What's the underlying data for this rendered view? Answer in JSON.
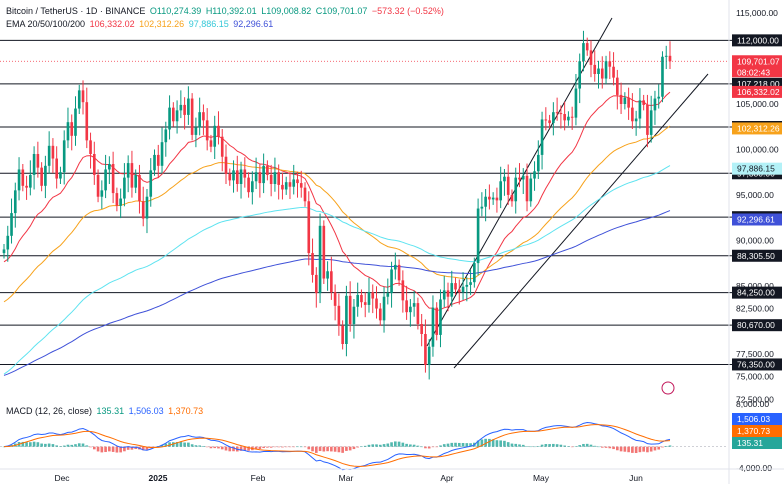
{
  "header": {
    "symbol": "Bitcoin / TetherUS · 1D · BINANCE",
    "open": "O110,274.39",
    "high": "H110,392.01",
    "low": "L109,008.82",
    "close": "C109,701.07",
    "change": "−573.32 (−0.52%)",
    "ema_label": "EMA 20/50/100/200",
    "ema20": "106,332.02",
    "ema50": "102,312.26",
    "ema100": "97,886.15",
    "ema200": "92,296.61",
    "macd_label": "MACD (12, 26, close)",
    "macd_hist": "135.31",
    "macd_line": "1,506.03",
    "macd_signal": "1,370.73"
  },
  "colors": {
    "up": "#089981",
    "down": "#f23645",
    "ema20": "#f23645",
    "ema50": "#f7a21b",
    "ema100": "#5ee3f0",
    "ema200": "#3f51d8",
    "macd_line": "#2962ff",
    "macd_signal": "#ff6d00"
  },
  "price_axis": {
    "ticks": [
      "115,000.00",
      "110,000.00",
      "105,000.00",
      "100,000.00",
      "95,000.00",
      "90,000.00",
      "85,000.00",
      "82,500.00",
      "77,500.00",
      "75,000.00",
      "72,500.00"
    ],
    "tick_values": [
      115000,
      110000,
      105000,
      100000,
      95000,
      90000,
      85000,
      82500,
      77500,
      75000,
      72500
    ]
  },
  "macd_axis": {
    "ticks": [
      "8,000.00",
      "-4,000.00"
    ],
    "tick_values": [
      8000,
      -4000
    ]
  },
  "time_axis": {
    "labels": [
      "Dec",
      "2025",
      "Feb",
      "Mar",
      "Apr",
      "May",
      "Jun"
    ]
  },
  "levels": [
    {
      "label": "112,000.00",
      "value": 112000
    },
    {
      "label": "107,218.00",
      "value": 107218
    },
    {
      "label": "102,470.00",
      "value": 102470
    },
    {
      "label": "97,380.00",
      "value": 97380
    },
    {
      "label": "92,550.00",
      "value": 92550
    },
    {
      "label": "88,305.50",
      "value": 88305.5
    },
    {
      "label": "84,250.00",
      "value": 84250
    },
    {
      "label": "80,670.00",
      "value": 80670
    },
    {
      "label": "76,350.00",
      "value": 76350
    }
  ],
  "price_tags": {
    "last_price": "109,701.07",
    "countdown": "08:02:43",
    "ema20": "106,332.02",
    "ema50": "102,312.26",
    "ema100": "97,886.15",
    "ema200": "92,296.61",
    "macd_line": "1,506.03",
    "macd_signal": "1,370.73",
    "macd_hist": "135.31"
  },
  "chart_data": {
    "type": "candlestick",
    "symbol": "Bitcoin / TetherUS",
    "interval": "1D",
    "exchange": "BINANCE",
    "y_range": [
      72000,
      116000
    ],
    "horizontal_levels": [
      112000,
      107218,
      102470,
      97380,
      92550,
      88305.5,
      84250,
      80670,
      76350
    ],
    "price_series": [
      89000,
      90500,
      93000,
      95500,
      97800,
      96000,
      95800,
      97200,
      99500,
      98000,
      96000,
      98200,
      100400,
      99000,
      96800,
      97500,
      101000,
      103000,
      101500,
      104500,
      106500,
      105200,
      101000,
      99500,
      97200,
      94800,
      95500,
      97800,
      98400,
      95200,
      93800,
      94600,
      96900,
      98500,
      95800,
      97200,
      94300,
      92400,
      94800,
      97700,
      99400,
      98200,
      100800,
      102200,
      104600,
      103100,
      104300,
      104900,
      103800,
      105600,
      101600,
      102400,
      104100,
      103200,
      101000,
      100300,
      102600,
      101400,
      99200,
      97300,
      96600,
      97700,
      96200,
      97800,
      96900,
      95300,
      96500,
      97500,
      96300,
      98200,
      97200,
      96200,
      97500,
      96100,
      95600,
      96400,
      95900,
      96700,
      96300,
      95800,
      94300,
      88600,
      86200,
      84200,
      91600,
      85800,
      86600,
      84300,
      82800,
      80600,
      78600,
      83900,
      80800,
      82700,
      84000,
      83200,
      82900,
      84300,
      83600,
      82500,
      81200,
      83800,
      84200,
      86800,
      87300,
      85600,
      83400,
      82100,
      82700,
      83100,
      80800,
      79700,
      76300,
      78300,
      82600,
      79600,
      83500,
      84500,
      83800,
      85300,
      84600,
      84300,
      84900,
      85100,
      85400,
      87500,
      93500,
      93700,
      94800,
      94500,
      94700,
      94400,
      96500,
      97000,
      95000,
      94300,
      96900,
      96700,
      97100,
      94300,
      96800,
      97600,
      99400,
      103300,
      103200,
      102900,
      104100,
      104000,
      103900,
      103200,
      103600,
      103500,
      106700,
      109700,
      111700,
      110900,
      109300,
      108300,
      108900,
      107800,
      109700,
      109100,
      107900,
      106000,
      105000,
      105700,
      104600,
      103100,
      103400,
      105400,
      104900,
      101600,
      104300,
      105600,
      105800,
      110200,
      110300,
      109701.07
    ],
    "ema": [
      {
        "period": 20,
        "last": 106332.02
      },
      {
        "period": 50,
        "last": 102312.26
      },
      {
        "period": 100,
        "last": 97886.15
      },
      {
        "period": 200,
        "last": 92296.61
      }
    ],
    "channel": {
      "lower_line": [
        [
          0,
          75000
        ],
        [
          1,
          108500
        ]
      ],
      "upper_line": [
        [
          0,
          79000
        ],
        [
          1,
          115500
        ]
      ],
      "note": "ascending channel from April low to June"
    },
    "macd": {
      "fast": 12,
      "slow": 26,
      "source": "close",
      "histogram": 135.31,
      "macd": 1506.03,
      "signal": 1370.73
    },
    "x_labels": [
      "Dec",
      "2025",
      "Feb",
      "Mar",
      "Apr",
      "May",
      "Jun"
    ]
  }
}
